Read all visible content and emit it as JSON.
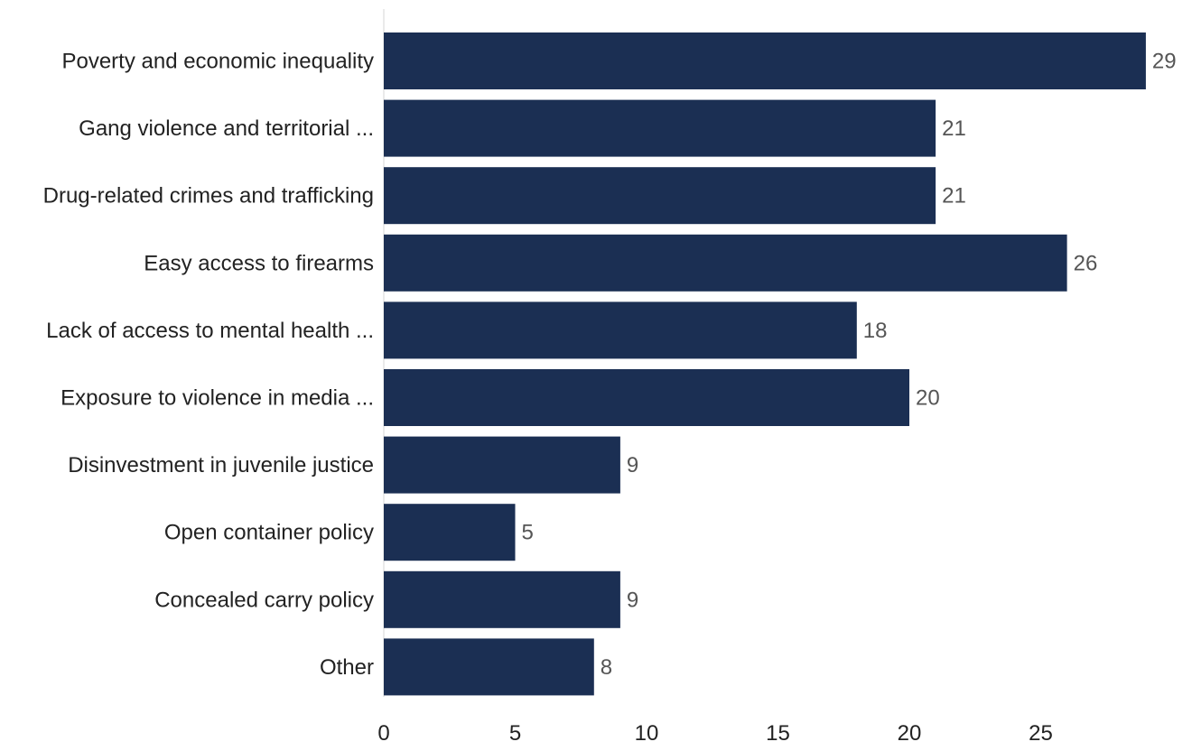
{
  "chart_data": {
    "type": "bar",
    "orientation": "horizontal",
    "categories": [
      "Poverty and economic inequality",
      "Gang violence and territorial ...",
      "Drug-related crimes and trafficking",
      "Easy access to firearms",
      "Lack of access to mental health ...",
      "Exposure to violence in media ...",
      "Disinvestment in juvenile justice",
      "Open container policy",
      "Concealed carry policy",
      "Other"
    ],
    "values": [
      29,
      21,
      21,
      26,
      18,
      20,
      9,
      5,
      9,
      8
    ],
    "value_labels": [
      "29",
      "21",
      "21",
      "26",
      "18",
      "20",
      "9",
      "5",
      "9",
      "8"
    ],
    "x_ticks": [
      0,
      5,
      10,
      15,
      20,
      25
    ],
    "x_tick_labels": [
      "0",
      "5",
      "10",
      "15",
      "20",
      "25"
    ],
    "xlim": [
      0,
      29
    ],
    "title": "",
    "xlabel": "",
    "ylabel": "",
    "grid": false,
    "legend": "none",
    "colors": {
      "bar": "#1b2f53",
      "axis_line": "#e3e3e3",
      "value_label": "#555555",
      "category_label": "#222222"
    }
  }
}
